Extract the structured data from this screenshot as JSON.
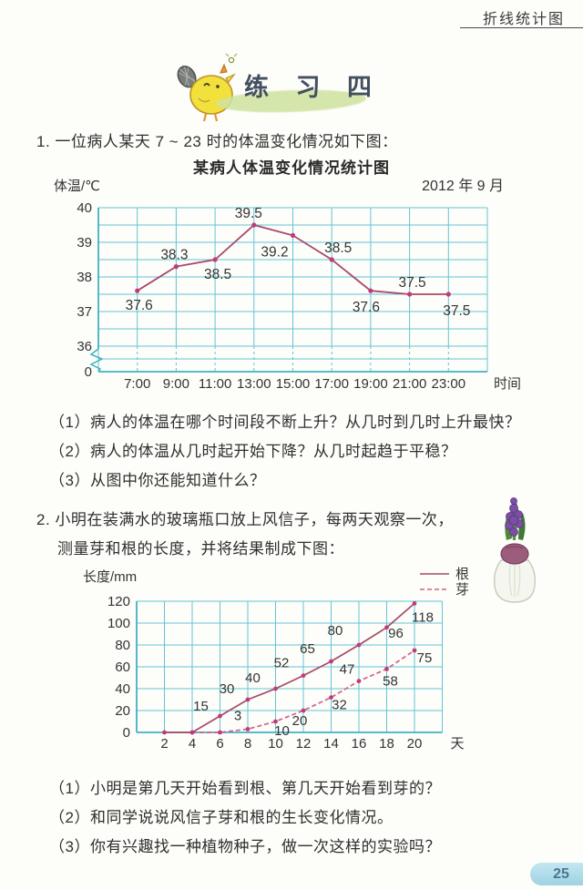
{
  "page": {
    "header": "折线统计图",
    "exercise_title": "练 习 四",
    "page_number": "25"
  },
  "problem1": {
    "text": "1. 一位病人某天 7 ~ 23 时的体温变化情况如下图：",
    "questions": [
      "（1）病人的体温在哪个时间段不断上升？从几时到几时上升最快？",
      "（2）病人的体温从几时起开始下降？从几时起趋于平稳？",
      "（3）从图中你还能知道什么？"
    ]
  },
  "problem2": {
    "line1": "2. 小明在装满水的玻璃瓶口放上风信子，每两天观察一次，",
    "line2": "测量芽和根的长度，并将结果制成下图：",
    "questions": [
      "（1）小明是第几天开始看到根、第几天开始看到芽的？",
      "（2）和同学说说风信子芽和根的生长变化情况。",
      "（3）你有兴趣找一种植物种子，做一次这样的实验吗？"
    ]
  },
  "chart_data": [
    {
      "type": "line",
      "title": "某病人体温变化情况统计图",
      "date_note": "2012 年 9 月",
      "ylabel": "体温/℃",
      "xlabel": "时间",
      "x_ticks": [
        "7:00",
        "9:00",
        "11:00",
        "13:00",
        "15:00",
        "17:00",
        "19:00",
        "21:00",
        "23:00"
      ],
      "y_ticks": [
        "40",
        "39",
        "38",
        "37",
        "36",
        "0"
      ],
      "ylim": [
        36,
        40
      ],
      "grid_step_y": 0.5,
      "grid_step_x_hours": 2,
      "axis_break": true,
      "series": [
        {
          "name": "体温",
          "x": [
            7,
            9,
            11,
            13,
            15,
            17,
            19,
            21,
            23
          ],
          "values": [
            37.6,
            38.3,
            38.5,
            39.5,
            39.2,
            38.5,
            37.6,
            37.5,
            37.5
          ],
          "labels": [
            "37.6",
            "38.3",
            "38.5",
            "39.5",
            "39.2",
            "38.5",
            "37.6",
            "37.5",
            "37.5"
          ],
          "label_offsets": [
            [
              2,
              21
            ],
            [
              -2,
              -8
            ],
            [
              3,
              21
            ],
            [
              -6,
              -8
            ],
            [
              -20,
              23
            ],
            [
              7,
              -8
            ],
            [
              -5,
              23
            ],
            [
              3,
              -8
            ],
            [
              9,
              23
            ]
          ]
        }
      ],
      "colors": {
        "grid": "#63c5d3",
        "axis": "#3fb2c4",
        "line": "#a84a68",
        "point": "#c23b78",
        "text": "#333333"
      }
    },
    {
      "type": "line",
      "title": "",
      "ylabel": "长度/mm",
      "xlabel": "天",
      "x_ticks": [
        "2",
        "4",
        "6",
        "8",
        "10",
        "12",
        "14",
        "16",
        "18",
        "20"
      ],
      "y_ticks": [
        "120",
        "100",
        "80",
        "60",
        "40",
        "20",
        "0"
      ],
      "ylim": [
        0,
        120
      ],
      "grid_step_y": 20,
      "grid_step_x_days": 2,
      "legend": [
        {
          "name": "根",
          "style": "solid"
        },
        {
          "name": "芽",
          "style": "dashed"
        }
      ],
      "series": [
        {
          "name": "根",
          "style": "solid",
          "x": [
            2,
            4,
            6,
            8,
            10,
            12,
            14,
            16,
            18,
            20
          ],
          "values": [
            0,
            0,
            15,
            30,
            40,
            52,
            65,
            80,
            96,
            118
          ],
          "labels": [
            "",
            "",
            "15",
            "30",
            "40",
            "52",
            "65",
            "80",
            "96",
            "118"
          ],
          "label_offsets": [
            [
              0,
              0
            ],
            [
              0,
              0
            ],
            [
              -21,
              -6
            ],
            [
              -23,
              -7
            ],
            [
              -25,
              -7
            ],
            [
              -24,
              -9
            ],
            [
              -26,
              -9
            ],
            [
              -26,
              -11
            ],
            [
              10,
              11
            ],
            [
              9,
              20
            ]
          ]
        },
        {
          "name": "芽",
          "style": "dashed",
          "x": [
            4,
            6,
            8,
            10,
            12,
            14,
            16,
            18,
            20
          ],
          "values": [
            0,
            0,
            3,
            10,
            20,
            32,
            47,
            58,
            75
          ],
          "labels": [
            "",
            "",
            "3",
            "10",
            "20",
            "32",
            "47",
            "58",
            "75"
          ],
          "label_offsets": [
            [
              0,
              0
            ],
            [
              0,
              0
            ],
            [
              -11,
              -10
            ],
            [
              7,
              15
            ],
            [
              -4,
              16
            ],
            [
              9,
              13
            ],
            [
              -13,
              -8
            ],
            [
              4,
              18
            ],
            [
              11,
              13
            ]
          ]
        }
      ],
      "colors": {
        "grid": "#63c5d3",
        "axis": "#3fb2c4",
        "line": "#a84a68",
        "dashed_line": "#d2608c",
        "point": "#c23b78",
        "text": "#333333"
      }
    }
  ]
}
